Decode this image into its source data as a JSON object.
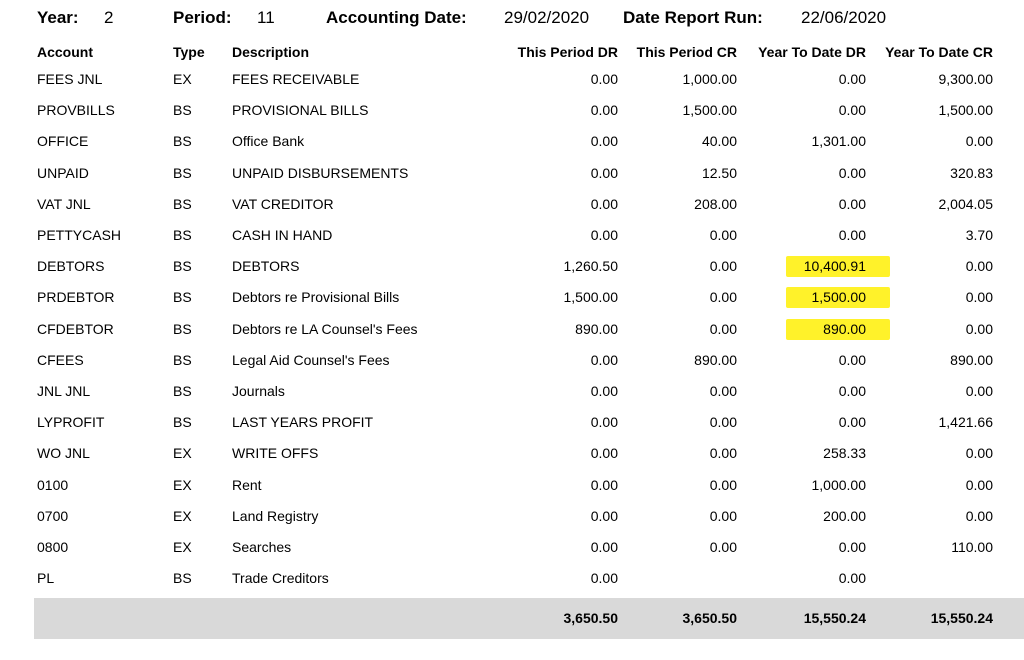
{
  "header": {
    "year_label": "Year:",
    "year": "2",
    "period_label": "Period:",
    "period": "11",
    "acc_date_label": "Accounting Date:",
    "acc_date": "29/02/2020",
    "run_label": "Date Report Run:",
    "run_date": "22/06/2020"
  },
  "columns": {
    "account": "Account",
    "type": "Type",
    "description": "Description",
    "tp_dr": "This Period DR",
    "tp_cr": "This Period CR",
    "ytd_dr": "Year To Date DR",
    "ytd_cr": "Year To Date CR"
  },
  "rows": [
    {
      "account": "FEES JNL",
      "type": "EX",
      "description": "FEES RECEIVABLE",
      "tp_dr": "0.00",
      "tp_cr": "1,000.00",
      "ytd_dr": "0.00",
      "ytd_cr": "9,300.00"
    },
    {
      "account": "PROVBILLS",
      "type": "BS",
      "description": "PROVISIONAL BILLS",
      "tp_dr": "0.00",
      "tp_cr": "1,500.00",
      "ytd_dr": "0.00",
      "ytd_cr": "1,500.00"
    },
    {
      "account": "OFFICE",
      "type": "BS",
      "description": "Office Bank",
      "tp_dr": "0.00",
      "tp_cr": "40.00",
      "ytd_dr": "1,301.00",
      "ytd_cr": "0.00"
    },
    {
      "account": "UNPAID",
      "type": "BS",
      "description": "UNPAID DISBURSEMENTS",
      "tp_dr": "0.00",
      "tp_cr": "12.50",
      "ytd_dr": "0.00",
      "ytd_cr": "320.83"
    },
    {
      "account": "VAT JNL",
      "type": "BS",
      "description": "VAT CREDITOR",
      "tp_dr": "0.00",
      "tp_cr": "208.00",
      "ytd_dr": "0.00",
      "ytd_cr": "2,004.05"
    },
    {
      "account": "PETTYCASH",
      "type": "BS",
      "description": "CASH IN HAND",
      "tp_dr": "0.00",
      "tp_cr": "0.00",
      "ytd_dr": "0.00",
      "ytd_cr": "3.70"
    },
    {
      "account": "DEBTORS",
      "type": "BS",
      "description": "DEBTORS",
      "tp_dr": "1,260.50",
      "tp_cr": "0.00",
      "ytd_dr": "10,400.91",
      "ytd_cr": "0.00",
      "highlight": true
    },
    {
      "account": "PRDEBTOR",
      "type": "BS",
      "description": "Debtors re Provisional Bills",
      "tp_dr": "1,500.00",
      "tp_cr": "0.00",
      "ytd_dr": "1,500.00",
      "ytd_cr": "0.00",
      "highlight": true
    },
    {
      "account": "CFDEBTOR",
      "type": "BS",
      "description": "Debtors re LA Counsel's Fees",
      "tp_dr": "890.00",
      "tp_cr": "0.00",
      "ytd_dr": "890.00",
      "ytd_cr": "0.00",
      "highlight": true
    },
    {
      "account": "CFEES",
      "type": "BS",
      "description": "Legal Aid Counsel's Fees",
      "tp_dr": "0.00",
      "tp_cr": "890.00",
      "ytd_dr": "0.00",
      "ytd_cr": "890.00"
    },
    {
      "account": "JNL JNL",
      "type": "BS",
      "description": "Journals",
      "tp_dr": "0.00",
      "tp_cr": "0.00",
      "ytd_dr": "0.00",
      "ytd_cr": "0.00"
    },
    {
      "account": "LYPROFIT",
      "type": "BS",
      "description": "LAST YEARS PROFIT",
      "tp_dr": "0.00",
      "tp_cr": "0.00",
      "ytd_dr": "0.00",
      "ytd_cr": "1,421.66"
    },
    {
      "account": "WO JNL",
      "type": "EX",
      "description": "WRITE OFFS",
      "tp_dr": "0.00",
      "tp_cr": "0.00",
      "ytd_dr": "258.33",
      "ytd_cr": "0.00"
    },
    {
      "account": "0100",
      "type": "EX",
      "description": "Rent",
      "tp_dr": "0.00",
      "tp_cr": "0.00",
      "ytd_dr": "1,000.00",
      "ytd_cr": "0.00"
    },
    {
      "account": "0700",
      "type": "EX",
      "description": "Land Registry",
      "tp_dr": "0.00",
      "tp_cr": "0.00",
      "ytd_dr": "200.00",
      "ytd_cr": "0.00"
    },
    {
      "account": "0800",
      "type": "EX",
      "description": "Searches",
      "tp_dr": "0.00",
      "tp_cr": "0.00",
      "ytd_dr": "0.00",
      "ytd_cr": "110.00"
    },
    {
      "account": "PL",
      "type": "BS",
      "description": "Trade Creditors",
      "tp_dr": "0.00",
      "tp_cr": "",
      "ytd_dr": "0.00",
      "ytd_cr": ""
    }
  ],
  "totals": {
    "tp_dr": "3,650.50",
    "tp_cr": "3,650.50",
    "ytd_dr": "15,550.24",
    "ytd_cr": "15,550.24"
  },
  "colors": {
    "highlight": "#fff22a",
    "totals_bg": "#d9d9d9"
  }
}
